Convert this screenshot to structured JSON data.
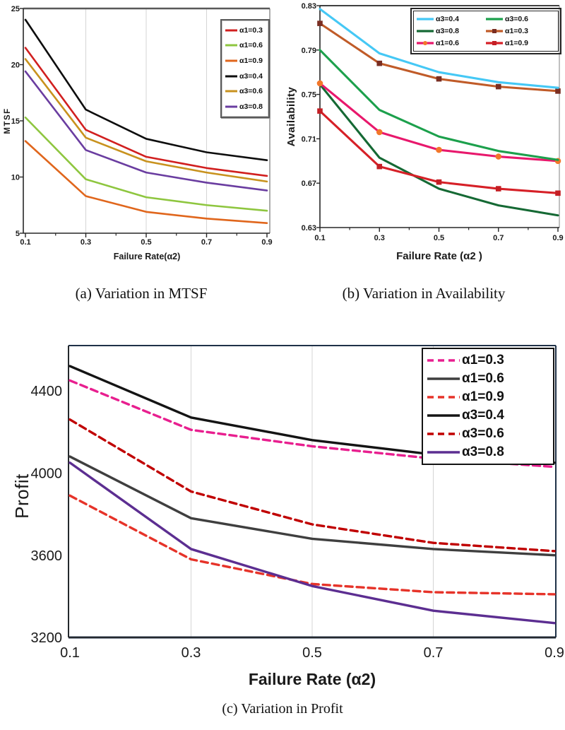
{
  "figure": {
    "background": "#ffffff",
    "x_tick_labels": [
      "0.1",
      "0.3",
      "0.5",
      "0.7",
      "0.9"
    ]
  },
  "chart_data": [
    {
      "type": "line",
      "title": "",
      "caption": "(a) Variation in MTSF",
      "xlabel": "Failure Rate(α2)",
      "ylabel": "MTSF",
      "x": [
        0.1,
        0.3,
        0.5,
        0.7,
        0.9
      ],
      "xticks": [
        "0.1",
        "0.3",
        "0.5",
        "0.7",
        "0.9"
      ],
      "yticks": [
        "25",
        "20",
        "15",
        "10",
        "5"
      ],
      "xlim": [
        0.1,
        0.9
      ],
      "ylim": [
        5,
        25
      ],
      "grid": "vertical-at-0.3-0.5-0.7",
      "legend_position": "top-right",
      "series": [
        {
          "name": "α1=0.3",
          "color": "#d11f1f",
          "dash": false,
          "marker": null,
          "values": [
            21.5,
            14.2,
            11.8,
            10.8,
            10.1
          ]
        },
        {
          "name": "α1=0.6",
          "color": "#8ec63f",
          "dash": false,
          "marker": null,
          "values": [
            15.3,
            9.8,
            8.2,
            7.5,
            7.0
          ]
        },
        {
          "name": "α1=0.9",
          "color": "#e0661c",
          "dash": false,
          "marker": null,
          "values": [
            13.2,
            8.3,
            6.9,
            6.3,
            5.9
          ]
        },
        {
          "name": "α3=0.4",
          "color": "#0d0d0d",
          "dash": false,
          "marker": null,
          "values": [
            24.0,
            16.0,
            13.4,
            12.2,
            11.5
          ]
        },
        {
          "name": "α3=0.6",
          "color": "#c8921e",
          "dash": false,
          "marker": null,
          "values": [
            20.5,
            13.5,
            11.4,
            10.4,
            9.6
          ]
        },
        {
          "name": "α3=0.8",
          "color": "#6a3da0",
          "dash": false,
          "marker": null,
          "values": [
            19.4,
            12.4,
            10.4,
            9.5,
            8.8
          ]
        }
      ]
    },
    {
      "type": "line",
      "title": "",
      "caption": "(b) Variation in Availability",
      "xlabel": "Failure Rate (α2 )",
      "ylabel": "Availability",
      "x": [
        0.1,
        0.3,
        0.5,
        0.7,
        0.9
      ],
      "xticks": [
        "0.1",
        "0.3",
        "0.5",
        "0.7",
        "0.9"
      ],
      "yticks": [
        "0.83",
        "0.79",
        "0.75",
        "0.71",
        "0.67",
        "0.63"
      ],
      "xlim": [
        0.1,
        0.9
      ],
      "ylim": [
        0.63,
        0.83
      ],
      "grid": "none",
      "legend_position": "top-right-two-columns",
      "series": [
        {
          "name": "α3=0.4",
          "color": "#45c8f5",
          "dash": false,
          "marker": null,
          "values": [
            0.827,
            0.787,
            0.77,
            0.761,
            0.756
          ]
        },
        {
          "name": "α3=0.6",
          "color": "#1ca04c",
          "dash": false,
          "marker": null,
          "values": [
            0.79,
            0.736,
            0.712,
            0.699,
            0.691
          ]
        },
        {
          "name": "α3=0.8",
          "color": "#156934",
          "dash": false,
          "marker": null,
          "values": [
            0.759,
            0.693,
            0.665,
            0.65,
            0.641
          ]
        },
        {
          "name": "α1=0.3",
          "color": "#c05b28",
          "dash": false,
          "marker": {
            "shape": "square",
            "color": "#7a2e22"
          },
          "values": [
            0.814,
            0.778,
            0.764,
            0.757,
            0.753
          ]
        },
        {
          "name": "α1=0.6",
          "color": "#e8186c",
          "dash": false,
          "marker": {
            "shape": "circle",
            "color": "#f2772a"
          },
          "values": [
            0.76,
            0.716,
            0.7,
            0.694,
            0.69
          ]
        },
        {
          "name": "α1=0.9",
          "color": "#d62027",
          "dash": false,
          "marker": {
            "shape": "square",
            "color": "#c41e24"
          },
          "values": [
            0.735,
            0.685,
            0.671,
            0.665,
            0.661
          ]
        }
      ]
    },
    {
      "type": "line",
      "title": "",
      "caption": "(c) Variation in Profit",
      "xlabel": "Failure Rate (α2)",
      "ylabel": "Profit",
      "x": [
        0.1,
        0.3,
        0.5,
        0.7,
        0.9
      ],
      "xticks": [
        "0.1",
        "0.3",
        "0.5",
        "0.7",
        "0.9"
      ],
      "yticks": [
        "4400",
        "4000",
        "3600",
        "3200"
      ],
      "xlim": [
        0.1,
        0.9
      ],
      "ylim": [
        3200,
        4620
      ],
      "grid": "vertical-at-0.3-0.5-0.7",
      "legend_position": "top-right",
      "series": [
        {
          "name": "α1=0.3",
          "color": "#e81f8f",
          "dash": true,
          "marker": null,
          "values": [
            4450,
            4210,
            4130,
            4070,
            4030
          ]
        },
        {
          "name": "α1=0.6",
          "color": "#3f3f3f",
          "dash": false,
          "marker": null,
          "values": [
            4080,
            3780,
            3680,
            3630,
            3600
          ]
        },
        {
          "name": "α1=0.9",
          "color": "#e63329",
          "dash": true,
          "marker": null,
          "values": [
            3890,
            3580,
            3460,
            3420,
            3410
          ]
        },
        {
          "name": "α3=0.4",
          "color": "#141414",
          "dash": false,
          "marker": null,
          "values": [
            4520,
            4270,
            4160,
            4090,
            4050
          ]
        },
        {
          "name": "α3=0.6",
          "color": "#c00000",
          "dash": true,
          "marker": null,
          "values": [
            4260,
            3910,
            3750,
            3660,
            3620
          ]
        },
        {
          "name": "α3=0.8",
          "color": "#5c2e91",
          "dash": false,
          "marker": null,
          "values": [
            4050,
            3630,
            3450,
            3330,
            3270
          ]
        }
      ]
    }
  ]
}
